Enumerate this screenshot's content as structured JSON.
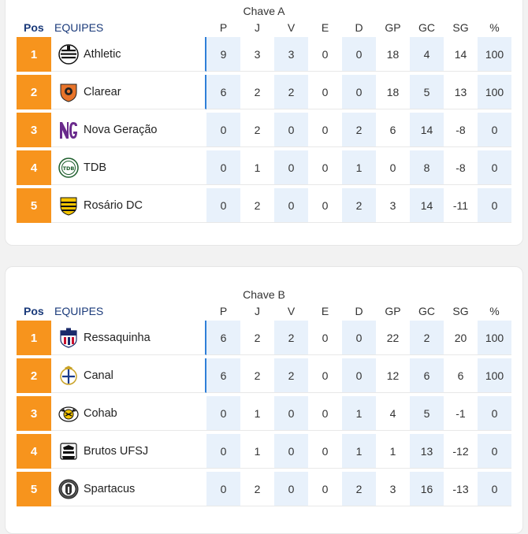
{
  "columns": {
    "pos": "Pos",
    "team": "EQUIPES",
    "stats": [
      "P",
      "J",
      "V",
      "E",
      "D",
      "GP",
      "GC",
      "SG",
      "%"
    ]
  },
  "groups": [
    {
      "title": "Chave A",
      "rows": [
        {
          "pos": "1",
          "team": "Athletic",
          "logo_icon": "athletic-crest-icon",
          "stats": [
            "9",
            "3",
            "3",
            "0",
            "0",
            "18",
            "4",
            "14",
            "100"
          ]
        },
        {
          "pos": "2",
          "team": "Clarear",
          "logo_icon": "clarear-crest-icon",
          "stats": [
            "6",
            "2",
            "2",
            "0",
            "0",
            "18",
            "5",
            "13",
            "100"
          ]
        },
        {
          "pos": "3",
          "team": "Nova Geração",
          "logo_icon": "nova-geracao-crest-icon",
          "stats": [
            "0",
            "2",
            "0",
            "0",
            "2",
            "6",
            "14",
            "-8",
            "0"
          ]
        },
        {
          "pos": "4",
          "team": "TDB",
          "logo_icon": "tdb-crest-icon",
          "stats": [
            "0",
            "1",
            "0",
            "0",
            "1",
            "0",
            "8",
            "-8",
            "0"
          ]
        },
        {
          "pos": "5",
          "team": "Rosário DC",
          "logo_icon": "rosario-crest-icon",
          "stats": [
            "0",
            "2",
            "0",
            "0",
            "2",
            "3",
            "14",
            "-11",
            "0"
          ]
        }
      ]
    },
    {
      "title": "Chave B",
      "rows": [
        {
          "pos": "1",
          "team": "Ressaquinha",
          "logo_icon": "ressaquinha-crest-icon",
          "stats": [
            "6",
            "2",
            "2",
            "0",
            "0",
            "22",
            "2",
            "20",
            "100"
          ]
        },
        {
          "pos": "2",
          "team": "Canal",
          "logo_icon": "canal-crest-icon",
          "stats": [
            "6",
            "2",
            "2",
            "0",
            "0",
            "12",
            "6",
            "6",
            "100"
          ]
        },
        {
          "pos": "3",
          "team": "Cohab",
          "logo_icon": "cohab-crest-icon",
          "stats": [
            "0",
            "1",
            "0",
            "0",
            "1",
            "4",
            "5",
            "-1",
            "0"
          ]
        },
        {
          "pos": "4",
          "team": "Brutos UFSJ",
          "logo_icon": "brutos-crest-icon",
          "stats": [
            "0",
            "1",
            "0",
            "0",
            "1",
            "1",
            "13",
            "-12",
            "0"
          ]
        },
        {
          "pos": "5",
          "team": "Spartacus",
          "logo_icon": "spartacus-crest-icon",
          "stats": [
            "0",
            "2",
            "0",
            "0",
            "2",
            "3",
            "16",
            "-13",
            "0"
          ]
        }
      ]
    }
  ],
  "colors": {
    "position_badge": "#f7941d",
    "header_blue": "#1a3a7a",
    "shaded_column": "#e8f1fb",
    "qualified_marker": "#2f7fd8"
  }
}
